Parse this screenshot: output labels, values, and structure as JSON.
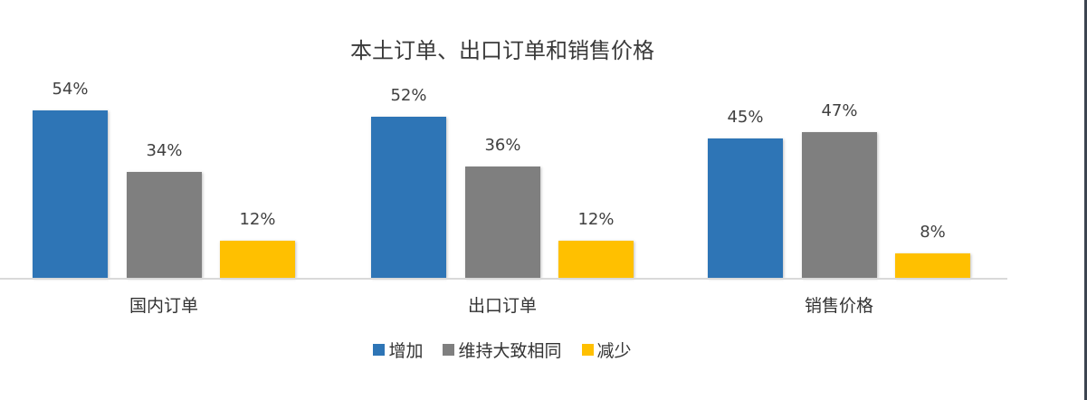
{
  "chart_data": {
    "type": "bar",
    "title": "本土订单、出口订单和销售价格",
    "categories": [
      "国内订单",
      "出口订单",
      "销售价格"
    ],
    "series": [
      {
        "name": "增加",
        "color": "#2E75B6",
        "values": [
          54,
          52,
          45
        ]
      },
      {
        "name": "维持大致相同",
        "color": "#7F7F7F",
        "values": [
          34,
          36,
          47
        ]
      },
      {
        "name": "减少",
        "color": "#FFC000",
        "values": [
          12,
          12,
          8
        ]
      }
    ],
    "value_labels": [
      [
        "54%",
        "52%",
        "45%"
      ],
      [
        "34%",
        "36%",
        "47%"
      ],
      [
        "12%",
        "12%",
        "8%"
      ]
    ],
    "xlabel": "",
    "ylabel": "",
    "ylim": [
      0,
      60
    ],
    "grid": false,
    "legend_position": "bottom",
    "unit": "%"
  },
  "legend": [
    {
      "label": "增加",
      "color": "#2E75B6"
    },
    {
      "label": "维持大致相同",
      "color": "#7F7F7F"
    },
    {
      "label": "减少",
      "color": "#FFC000"
    }
  ]
}
